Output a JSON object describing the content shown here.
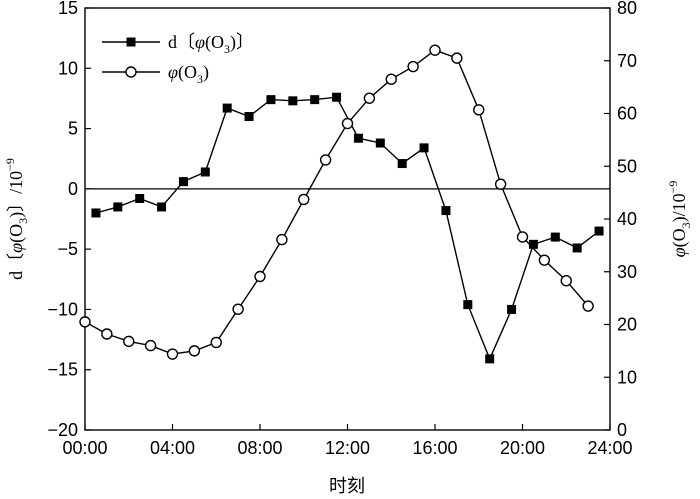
{
  "chart_data": {
    "type": "line",
    "xlabel": "时刻",
    "x_tick_labels": [
      "00:00",
      "04:00",
      "08:00",
      "12:00",
      "16:00",
      "20:00",
      "24:00"
    ],
    "xlim": [
      0,
      24
    ],
    "y_left": {
      "label_parts": [
        "d〔",
        "φ",
        "(O",
        "3",
        ")〕/10",
        "−9"
      ],
      "ylim": [
        -20,
        15
      ],
      "ticks": [
        15,
        10,
        5,
        0,
        -5,
        -10,
        -15,
        -20
      ],
      "tick_labels": [
        "15",
        "10",
        "5",
        "0",
        "−5",
        "−10",
        "−15",
        "−20"
      ]
    },
    "y_right": {
      "label_parts": [
        "φ",
        "(O",
        "3",
        ")/10",
        "−9"
      ],
      "ylim": [
        0,
        80
      ],
      "ticks": [
        80,
        70,
        60,
        50,
        40,
        30,
        20,
        10,
        0
      ],
      "tick_labels": [
        "80",
        "70",
        "60",
        "50",
        "40",
        "30",
        "20",
        "10",
        "0"
      ]
    },
    "zero_line": 0,
    "legend": {
      "placement": "top-left",
      "entries": [
        {
          "parts": [
            "d〔",
            "φ",
            "(O",
            "3",
            ")〕"
          ],
          "marker": "filled-square"
        },
        {
          "parts": [
            "φ",
            "(O",
            "3",
            ")"
          ],
          "marker": "open-circle"
        }
      ]
    },
    "series": [
      {
        "axis": "left",
        "marker": "filled-square",
        "x": [
          0.5,
          1.5,
          2.5,
          3.5,
          4.5,
          5.5,
          6.5,
          7.5,
          8.5,
          9.5,
          10.5,
          11.5,
          12.5,
          13.5,
          14.5,
          15.5,
          16.5,
          17.5,
          18.5,
          19.5,
          20.5,
          21.5,
          22.5,
          23.5
        ],
        "values": [
          -2.0,
          -1.5,
          -0.8,
          -1.5,
          0.6,
          1.4,
          6.7,
          6.0,
          7.4,
          7.3,
          7.4,
          7.6,
          4.2,
          3.8,
          2.1,
          3.4,
          -1.8,
          -9.6,
          -14.1,
          -10.0,
          -4.6,
          -4.0,
          -4.9,
          -3.5
        ]
      },
      {
        "axis": "right",
        "marker": "open-circle",
        "x": [
          0,
          1,
          2,
          3,
          4,
          5,
          6,
          7,
          8,
          9,
          10,
          11,
          12,
          13,
          14,
          15,
          16,
          17,
          18,
          19,
          20,
          21,
          22,
          23
        ],
        "values": [
          20.5,
          18.2,
          16.8,
          16.0,
          14.4,
          15.0,
          16.6,
          22.9,
          29.1,
          36.1,
          43.7,
          51.2,
          58.1,
          62.9,
          66.5,
          68.9,
          72.0,
          70.5,
          60.7,
          46.6,
          36.6,
          32.2,
          28.3,
          23.5
        ]
      }
    ]
  }
}
